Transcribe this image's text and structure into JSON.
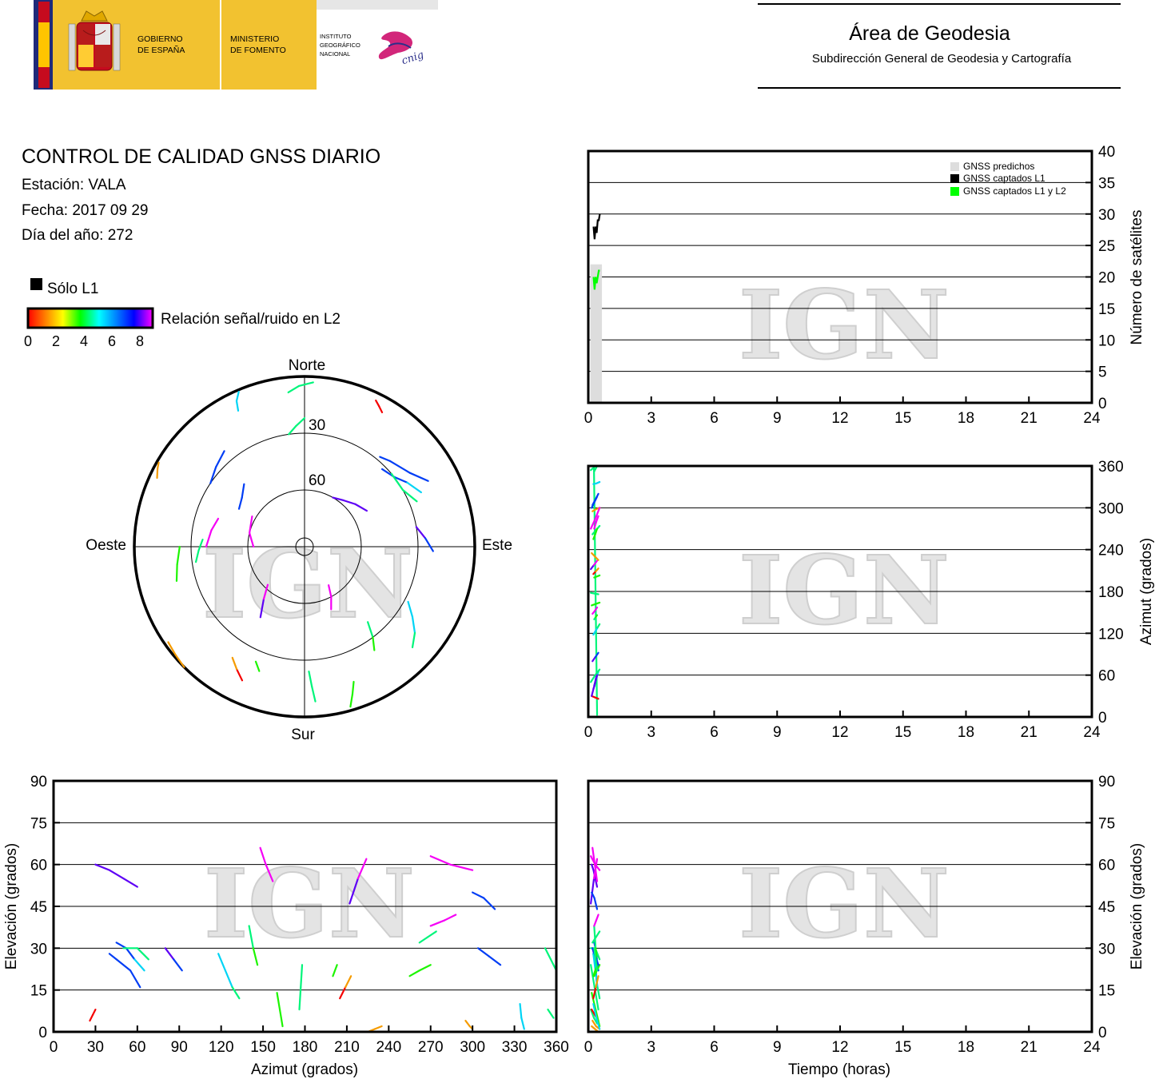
{
  "header": {
    "gov_line1": "GOBIERNO",
    "gov_line2": "DE ESPAÑA",
    "min_line1": "MINISTERIO",
    "min_line2": "DE FOMENTO",
    "ign_line1": "INSTITUTO",
    "ign_line2": "GEOGRÁFICO",
    "ign_line3": "NACIONAL",
    "cnig_text": "cnig",
    "area_title": "Área de Geodesia",
    "area_subtitle": "Subdirección General de Geodesia y Cartografía",
    "colors": {
      "flag_red": "#c60b1e",
      "flag_yellow": "#ffc400",
      "blue": "#1f2a7a",
      "gold": "#f2c230",
      "cnig": "#d2267a"
    }
  },
  "info": {
    "title": "CONTROL DE CALIDAD GNSS DIARIO",
    "station": "Estación: VALA",
    "date": "Fecha: 2017 09 29",
    "doy": "Día del año: 272",
    "solo_l1": "Sólo L1",
    "snr_label": "Relación señal/ruido en L2",
    "snr_ticks": [
      "0",
      "2",
      "4",
      "6",
      "8"
    ]
  },
  "watermark": "IGN",
  "icons": [
    "flag-emblem-icon",
    "cnig-logo-icon"
  ],
  "chart_data": [
    {
      "id": "skyplot",
      "type": "scatter",
      "labels": {
        "north": "Norte",
        "south": "Sur",
        "east": "Este",
        "west": "Oeste"
      },
      "elev_ring_labels": [
        "30",
        "60"
      ],
      "tracks": [
        {
          "az": [
            354,
            358,
            3
          ],
          "el": [
            8,
            5,
            3
          ],
          "snr": [
            4,
            4,
            4
          ]
        },
        {
          "az": [
            30,
            28,
            26
          ],
          "el": [
            8,
            6,
            4
          ],
          "snr": [
            0,
            0,
            0
          ]
        },
        {
          "az": [
            295,
            298,
            300
          ],
          "el": [
            4,
            2,
            1
          ],
          "snr": [
            1,
            1,
            1
          ]
        },
        {
          "az": [
            40,
            45,
            55,
            62
          ],
          "el": [
            28,
            26,
            22,
            16
          ],
          "snr": [
            6,
            6,
            6,
            5
          ]
        },
        {
          "az": [
            45,
            52,
            58,
            65
          ],
          "el": [
            32,
            30,
            26,
            22
          ],
          "snr": [
            6,
            6,
            5,
            5
          ]
        },
        {
          "az": [
            50,
            60,
            68
          ],
          "el": [
            30,
            30,
            26
          ],
          "snr": [
            4,
            4,
            4
          ]
        },
        {
          "az": [
            30,
            40,
            50,
            60
          ],
          "el": [
            60,
            58,
            55,
            52
          ],
          "snr": [
            7,
            7,
            7,
            7
          ]
        },
        {
          "az": [
            80,
            86,
            92
          ],
          "el": [
            30,
            26,
            22
          ],
          "snr": [
            7,
            6,
            6
          ]
        },
        {
          "az": [
            118,
            123,
            128,
            133
          ],
          "el": [
            28,
            22,
            16,
            12
          ],
          "snr": [
            5,
            5,
            4,
            4
          ]
        },
        {
          "az": [
            140,
            143,
            146
          ],
          "el": [
            38,
            30,
            24
          ],
          "snr": [
            4,
            3,
            3
          ]
        },
        {
          "az": [
            178,
            177,
            176
          ],
          "el": [
            24,
            16,
            8
          ],
          "snr": [
            4,
            4,
            3
          ]
        },
        {
          "az": [
            160,
            162,
            164
          ],
          "el": [
            14,
            8,
            2
          ],
          "snr": [
            3,
            3,
            3
          ]
        },
        {
          "az": [
            148,
            152,
            157
          ],
          "el": [
            66,
            60,
            54
          ],
          "snr": [
            8,
            8,
            8
          ]
        },
        {
          "az": [
            205,
            209,
            213
          ],
          "el": [
            12,
            16,
            20
          ],
          "snr": [
            0,
            1,
            2
          ]
        },
        {
          "az": [
            200,
            203
          ],
          "el": [
            20,
            24
          ],
          "snr": [
            3,
            4
          ]
        },
        {
          "az": [
            212,
            218,
            224
          ],
          "el": [
            46,
            55,
            62
          ],
          "snr": [
            7,
            8,
            8
          ]
        },
        {
          "az": [
            235,
            230,
            225
          ],
          "el": [
            2,
            1,
            0
          ],
          "snr": [
            1,
            1,
            1
          ]
        },
        {
          "az": [
            262,
            268,
            274
          ],
          "el": [
            32,
            34,
            36
          ],
          "snr": [
            4,
            4,
            4
          ]
        },
        {
          "az": [
            255,
            262,
            270
          ],
          "el": [
            20,
            22,
            24
          ],
          "snr": [
            3,
            3,
            3
          ]
        },
        {
          "az": [
            270,
            280,
            288
          ],
          "el": [
            38,
            40,
            42
          ],
          "snr": [
            8,
            8,
            7
          ]
        },
        {
          "az": [
            270,
            284,
            300
          ],
          "el": [
            63,
            60,
            58
          ],
          "snr": [
            8,
            8,
            8
          ]
        },
        {
          "az": [
            300,
            308,
            316
          ],
          "el": [
            50,
            48,
            44
          ],
          "snr": [
            6,
            6,
            6
          ]
        },
        {
          "az": [
            304,
            312,
            320
          ],
          "el": [
            30,
            27,
            24
          ],
          "snr": [
            6,
            6,
            6
          ]
        },
        {
          "az": [
            334,
            335,
            337
          ],
          "el": [
            10,
            5,
            1
          ],
          "snr": [
            5,
            5,
            5
          ]
        },
        {
          "az": [
            352,
            356,
            360
          ],
          "el": [
            30,
            26,
            22
          ],
          "snr": [
            4,
            4,
            4
          ]
        }
      ]
    },
    {
      "id": "satellites-vs-time",
      "type": "area",
      "xlim": [
        0,
        24
      ],
      "ylim": [
        0,
        40
      ],
      "ylabel": "Número de satélites",
      "xticks": [
        0,
        3,
        6,
        9,
        12,
        15,
        18,
        21,
        24
      ],
      "yticks": [
        0,
        5,
        10,
        15,
        20,
        25,
        30,
        35,
        40
      ],
      "legend_position": "top-right",
      "series": [
        {
          "name": "GNSS predichos",
          "color": "#dddddd",
          "x": [
            0.1,
            0.65
          ],
          "values": [
            22,
            22
          ]
        },
        {
          "name": "GNSS captados L1",
          "color": "#000000",
          "x": [
            0.25,
            0.3,
            0.35,
            0.4,
            0.45,
            0.5,
            0.55
          ],
          "values": [
            28,
            26,
            28,
            27,
            29,
            29,
            30
          ]
        },
        {
          "name": "GNSS captados L1 y L2",
          "color": "#00ff00",
          "x": [
            0.25,
            0.3,
            0.35,
            0.4,
            0.45,
            0.5,
            0.55
          ],
          "values": [
            20,
            18,
            20,
            19,
            20,
            21,
            21
          ]
        }
      ]
    },
    {
      "id": "azimuth-vs-time",
      "type": "scatter",
      "xlim": [
        0,
        24
      ],
      "ylim": [
        0,
        360
      ],
      "ylabel": "Azimut (grados)",
      "xticks": [
        0,
        3,
        6,
        9,
        12,
        15,
        18,
        21,
        24
      ],
      "yticks": [
        0,
        60,
        120,
        180,
        240,
        300,
        360
      ]
    },
    {
      "id": "elevation-vs-azimuth",
      "type": "scatter",
      "xlim": [
        0,
        360
      ],
      "ylim": [
        0,
        90
      ],
      "xlabel": "Azimut (grados)",
      "ylabel": "Elevación (grados)",
      "xticks": [
        0,
        30,
        60,
        90,
        120,
        150,
        180,
        210,
        240,
        270,
        300,
        330,
        360
      ],
      "yticks": [
        0,
        15,
        30,
        45,
        60,
        75,
        90
      ]
    },
    {
      "id": "elevation-vs-time",
      "type": "scatter",
      "xlim": [
        0,
        24
      ],
      "ylim": [
        0,
        90
      ],
      "xlabel": "Tiempo (horas)",
      "ylabel": "Elevación (grados)",
      "xticks": [
        0,
        3,
        6,
        9,
        12,
        15,
        18,
        21,
        24
      ],
      "yticks": [
        0,
        15,
        30,
        45,
        60,
        75,
        90
      ]
    }
  ]
}
